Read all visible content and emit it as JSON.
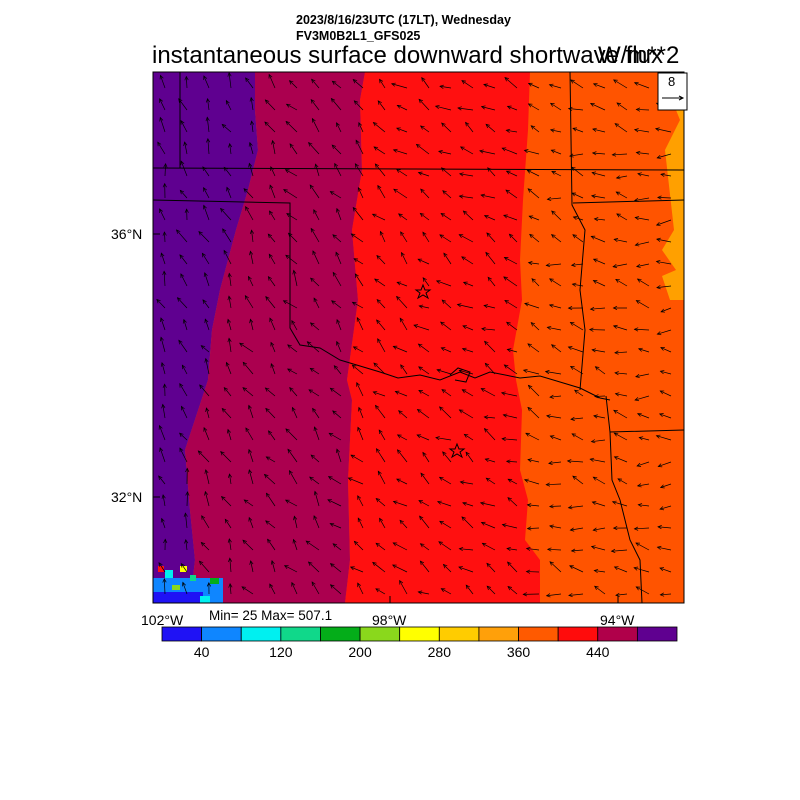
{
  "header": {
    "datetime": "2023/8/16/23UTC (17LT), Wednesday",
    "model": "FV3M0B2L1_GFS025",
    "title": "instantaneous surface downward shortwave flux",
    "units": "W/m**2"
  },
  "vector_legend": {
    "reference_value": "8"
  },
  "axes": {
    "lat_labels": [
      "36°N",
      "32°N"
    ],
    "lon_labels": [
      "102°W",
      "98°W",
      "94°W"
    ]
  },
  "stats": {
    "text": "Min= 25 Max= 507.1"
  },
  "colorbar": {
    "colors": [
      "#1f12f5",
      "#0f86ff",
      "#00f0f0",
      "#10d88a",
      "#04ad19",
      "#8ad81c",
      "#ffff00",
      "#ffcc00",
      "#ffa00a",
      "#ff5a00",
      "#ff0c0c",
      "#b0004a",
      "#5f0090"
    ],
    "tick_labels": [
      "40",
      "120",
      "200",
      "280",
      "360",
      "440"
    ]
  },
  "field_colors": {
    "purple": "#5f0090",
    "crimson": "#ab004f",
    "red": "#ff1010",
    "orange": "#ff5400",
    "orange_light": "#ffa000"
  },
  "markers": [
    {
      "type": "star"
    },
    {
      "type": "star"
    }
  ]
}
